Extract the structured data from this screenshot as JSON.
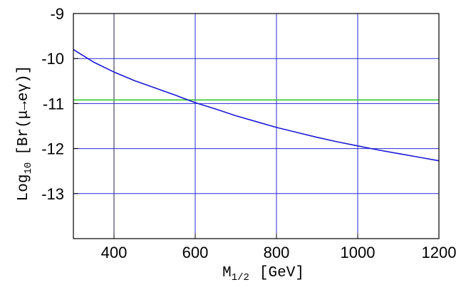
{
  "chart_data": {
    "type": "line",
    "title": "",
    "xlabel": "M",
    "xlabel_sub": "1/2",
    "xlabel_unit": "[GeV]",
    "ylabel": "Log",
    "ylabel_sub": "10",
    "ylabel_rest": "[Br(μ→eγ)]",
    "xlim": [
      300,
      1200
    ],
    "ylim": [
      -14,
      -9
    ],
    "x_ticks": [
      400,
      600,
      800,
      1000,
      1200
    ],
    "y_ticks": [
      -9,
      -10,
      -11,
      -12,
      -13
    ],
    "grid": true,
    "gridlines": {
      "x": [
        400,
        600,
        800,
        1000
      ],
      "y": [
        -10,
        -11,
        -12,
        -13
      ],
      "dark_x": 400
    },
    "colors": {
      "curve": "#1a1ad6",
      "grid": "#2a2ad6",
      "reference": "#33cc33",
      "frame": "#000000"
    },
    "reference_line": {
      "y": -10.92
    },
    "series": [
      {
        "x": [
          300,
          350,
          400,
          450,
          500,
          550,
          600,
          650,
          700,
          750,
          800,
          850,
          900,
          950,
          1000,
          1050,
          1100,
          1150,
          1200
        ],
        "y": [
          -9.8,
          -10.08,
          -10.3,
          -10.49,
          -10.65,
          -10.81,
          -10.98,
          -11.12,
          -11.27,
          -11.4,
          -11.53,
          -11.64,
          -11.75,
          -11.85,
          -11.94,
          -12.03,
          -12.11,
          -12.19,
          -12.27
        ]
      }
    ]
  }
}
